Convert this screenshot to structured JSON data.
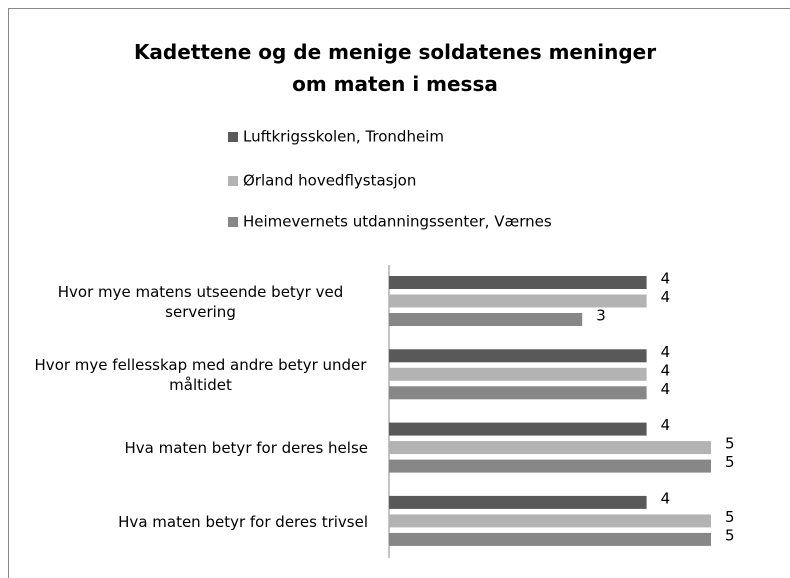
{
  "chart_data": {
    "type": "bar",
    "orientation": "horizontal",
    "title": "Kadettene og de menige soldatenes meninger om maten i messa",
    "categories": [
      "Hvor mye matens utseende betyr ved servering",
      "Hvor mye fellesskap med andre betyr under måltidet",
      "Hva maten betyr for deres helse",
      "Hva maten betyr for deres trivsel"
    ],
    "series": [
      {
        "name": "Luftkrigsskolen, Trondheim",
        "color": "#595959",
        "values": [
          4,
          4,
          4,
          4
        ]
      },
      {
        "name": "Ørland hovedflystasjon",
        "color": "#b3b3b3",
        "values": [
          4,
          4,
          5,
          5
        ]
      },
      {
        "name": "Heimevernets utdanningssenter, Værnes",
        "color": "#878787",
        "values": [
          3,
          4,
          5,
          5
        ]
      }
    ],
    "xlim": [
      0,
      5
    ],
    "legend": "top"
  }
}
